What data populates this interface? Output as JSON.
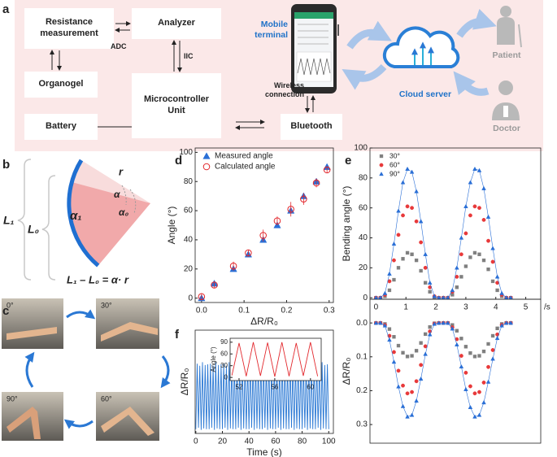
{
  "panel_labels": [
    "a",
    "b",
    "c",
    "d",
    "e",
    "f"
  ],
  "panel_a": {
    "boxes": [
      "Resistance measurement",
      "Analyzer",
      "Organogel",
      "Microcontroller Unit",
      "Battery",
      "Bluetooth"
    ],
    "adc": "ADC",
    "iic": "IIC",
    "wireless": "Wireless connection",
    "mobile": "Mobile terminal",
    "cloud": "Cloud server",
    "patient": "Patient",
    "doctor": "Doctor"
  },
  "panel_b": {
    "L1": "L₁",
    "L0": "L₀",
    "alpha1": "α₁",
    "r": "r",
    "alpha": "α",
    "alpha0": "α₀",
    "formula": "L₁ – L₀ = α· r"
  },
  "panel_c": {
    "angles": [
      "0°",
      "30°",
      "90°",
      "60°"
    ]
  },
  "chart_data": [
    {
      "type": "scatter",
      "xlabel": "ΔR/R₀",
      "ylabel": "Angle (°)",
      "xlim": [
        -0.015,
        0.31
      ],
      "ylim": [
        -3,
        103
      ],
      "xticks": [
        {
          "value": 0,
          "label": "0.0"
        },
        0.1,
        0.2,
        0.3
      ],
      "yticks": [
        0,
        20,
        40,
        60,
        80,
        100
      ],
      "legend": "upper left",
      "x": [
        0,
        0.03,
        0.075,
        0.11,
        0.145,
        0.178,
        0.21,
        0.24,
        0.27,
        0.295
      ],
      "series": [
        {
          "name": "Measured angle",
          "color": "#2a6fd6",
          "marker": "triangle",
          "filled": true,
          "values": [
            0,
            10,
            20,
            30,
            40,
            50,
            60,
            70,
            80,
            90
          ]
        },
        {
          "name": "Calculated angle",
          "color": "#e2262b",
          "marker": "circle",
          "filled": false,
          "values": [
            1,
            9,
            22,
            31,
            43,
            53,
            61,
            68,
            79,
            88
          ],
          "errors": [
            2,
            2,
            3,
            2,
            4,
            3,
            5,
            4,
            3,
            2
          ]
        }
      ]
    },
    {
      "type": "scatter",
      "xlabel": "/s",
      "ylabel": "Bending angle (°)",
      "xlim": [
        -0.2,
        5.5
      ],
      "ylim": [
        -1,
        100
      ],
      "xticks": [
        0,
        1,
        2,
        3,
        4,
        5
      ],
      "yticks": [
        0,
        20,
        40,
        60,
        80,
        100
      ],
      "legend": "upper left",
      "x": [
        0,
        0.15,
        0.3,
        0.45,
        0.6,
        0.75,
        0.9,
        1.05,
        1.2,
        1.35,
        1.5,
        1.65,
        1.8,
        1.95,
        2.1,
        2.25,
        2.4,
        2.55,
        2.7,
        2.85,
        3.0,
        3.15,
        3.3,
        3.45,
        3.6,
        3.75,
        3.9,
        4.05,
        4.2,
        4.35,
        4.5
      ],
      "series": [
        {
          "name": "30°",
          "color": "#7f7f7f",
          "marker": "square",
          "filled": true,
          "values": [
            0,
            0,
            1,
            5,
            12,
            20,
            26,
            30,
            29,
            25,
            18,
            10,
            4,
            0,
            0,
            0,
            0,
            2,
            7,
            14,
            21,
            27,
            30,
            29,
            25,
            19,
            11,
            5,
            1,
            0,
            0
          ]
        },
        {
          "name": "60°",
          "color": "#e8393a",
          "marker": "circle",
          "filled": true,
          "values": [
            0,
            0,
            2,
            11,
            25,
            42,
            55,
            61,
            60,
            51,
            37,
            20,
            7,
            1,
            0,
            0,
            0,
            4,
            14,
            29,
            43,
            55,
            61,
            60,
            52,
            38,
            24,
            10,
            2,
            0,
            0
          ]
        },
        {
          "name": "90°",
          "color": "#2a6fd6",
          "marker": "triangle",
          "filled": true,
          "line": true,
          "values": [
            0,
            0,
            3,
            16,
            36,
            58,
            77,
            86,
            84,
            71,
            51,
            29,
            10,
            1,
            0,
            0,
            0,
            5,
            20,
            40,
            61,
            77,
            86,
            85,
            73,
            54,
            33,
            14,
            3,
            0,
            0
          ]
        }
      ]
    },
    {
      "type": "scatter",
      "ylabel": "ΔR/R₀",
      "y_inverted": true,
      "xlim": [
        -0.2,
        5.5
      ],
      "ylim": [
        -0.07,
        0.355
      ],
      "yticks": [
        {
          "value": 0,
          "label": "0.0"
        },
        0.1,
        0.2,
        0.3
      ],
      "x": [
        0,
        0.15,
        0.3,
        0.45,
        0.6,
        0.75,
        0.9,
        1.05,
        1.2,
        1.35,
        1.5,
        1.65,
        1.8,
        1.95,
        2.1,
        2.25,
        2.4,
        2.55,
        2.7,
        2.85,
        3.0,
        3.15,
        3.3,
        3.45,
        3.6,
        3.75,
        3.9,
        4.05,
        4.2,
        4.35,
        4.5
      ],
      "series": [
        {
          "color": "#7f7f7f",
          "marker": "square",
          "filled": true,
          "values": [
            0,
            0,
            0.003,
            0.018,
            0.041,
            0.067,
            0.088,
            0.099,
            0.097,
            0.082,
            0.059,
            0.033,
            0.012,
            0.001,
            0,
            0,
            0,
            0.006,
            0.023,
            0.046,
            0.07,
            0.089,
            0.099,
            0.097,
            0.084,
            0.062,
            0.038,
            0.016,
            0.003,
            0,
            0
          ]
        },
        {
          "color": "#e8393a",
          "marker": "circle",
          "filled": true,
          "values": [
            0,
            0,
            0.006,
            0.038,
            0.086,
            0.141,
            0.185,
            0.208,
            0.204,
            0.172,
            0.124,
            0.069,
            0.025,
            0.002,
            0,
            0,
            0,
            0.013,
            0.048,
            0.097,
            0.147,
            0.187,
            0.208,
            0.204,
            0.176,
            0.13,
            0.08,
            0.034,
            0.006,
            0,
            0
          ]
        },
        {
          "color": "#2a6fd6",
          "marker": "triangle",
          "filled": true,
          "line": true,
          "values": [
            0,
            0,
            0.008,
            0.05,
            0.115,
            0.188,
            0.246,
            0.277,
            0.272,
            0.23,
            0.165,
            0.092,
            0.034,
            0.003,
            0,
            0,
            0,
            0.017,
            0.064,
            0.129,
            0.196,
            0.249,
            0.277,
            0.272,
            0.235,
            0.174,
            0.106,
            0.045,
            0.008,
            0,
            0
          ]
        }
      ]
    },
    {
      "type": "line",
      "xlabel": "Time (s)",
      "ylabel": "ΔR/R₀",
      "xlim": [
        -0.5,
        103.5
      ],
      "ylim": [
        0,
        1.45
      ],
      "xticks": [
        0,
        20,
        40,
        60,
        80,
        100
      ],
      "x": [
        0,
        1,
        2,
        3,
        4,
        5,
        6,
        7,
        8,
        9,
        10,
        11,
        12,
        13,
        14,
        15,
        16,
        17,
        18,
        19,
        20,
        21,
        22,
        23,
        24,
        25,
        26,
        27,
        28,
        29,
        30,
        31,
        32,
        33,
        34,
        35,
        36,
        37,
        38,
        39,
        40,
        41,
        42,
        43,
        44,
        45,
        46,
        47,
        48,
        49,
        50,
        51,
        52,
        53,
        54,
        55,
        56,
        57,
        58,
        59,
        60,
        61,
        62,
        63,
        64,
        65,
        66,
        67,
        68,
        69,
        70,
        71,
        72,
        73,
        74,
        75,
        76,
        77,
        78,
        79,
        80,
        81,
        82,
        83,
        84,
        85,
        86,
        87,
        88,
        89,
        90,
        91,
        92,
        93,
        94,
        95,
        96,
        97,
        98,
        99,
        100
      ],
      "series": [
        {
          "color": "#2a78d4",
          "values": [
            0.06,
            0.98,
            0.08,
            0.95,
            0.05,
            1.0,
            0.07,
            0.96,
            0.06,
            0.97,
            0.06,
            0.98,
            0.08,
            0.95,
            0.05,
            1.0,
            0.07,
            0.96,
            0.06,
            0.97,
            0.06,
            0.98,
            0.08,
            0.95,
            0.05,
            1.0,
            0.07,
            0.96,
            0.06,
            0.97,
            0.06,
            0.98,
            0.08,
            0.95,
            0.05,
            1.0,
            0.07,
            0.96,
            0.06,
            0.97,
            0.06,
            0.98,
            0.08,
            0.95,
            0.05,
            1.0,
            0.07,
            0.96,
            0.06,
            0.97,
            0.06,
            0.98,
            0.08,
            0.95,
            0.05,
            1.0,
            0.07,
            0.96,
            0.06,
            0.97,
            0.06,
            0.98,
            0.08,
            0.95,
            0.05,
            1.0,
            0.07,
            0.96,
            0.06,
            0.97,
            0.06,
            0.98,
            0.08,
            0.95,
            0.05,
            1.0,
            0.07,
            0.96,
            0.06,
            0.97,
            0.06,
            0.98,
            0.08,
            0.95,
            0.05,
            1.0,
            0.07,
            0.96,
            0.06,
            0.97,
            0.06,
            0.98,
            0.08,
            0.95,
            0.05,
            1.0,
            0.07,
            0.96,
            0.06,
            0.97,
            0.06
          ]
        }
      ]
    },
    {
      "type": "line",
      "ylabel": "Angle (°)",
      "xlim": [
        51,
        61.2
      ],
      "ylim": [
        -8,
        100
      ],
      "xticks": [
        52,
        56,
        60
      ],
      "yticks": [
        0,
        30,
        60,
        90
      ],
      "x": [
        51.2,
        52,
        52.8,
        53.6,
        54.4,
        55.2,
        56,
        56.8,
        57.6,
        58.4,
        59.2,
        60,
        60.8
      ],
      "series": [
        {
          "color": "#e2262b",
          "values": [
            5,
            88,
            3,
            90,
            4,
            89,
            2,
            90,
            3,
            88,
            4,
            90,
            3
          ]
        }
      ]
    }
  ]
}
